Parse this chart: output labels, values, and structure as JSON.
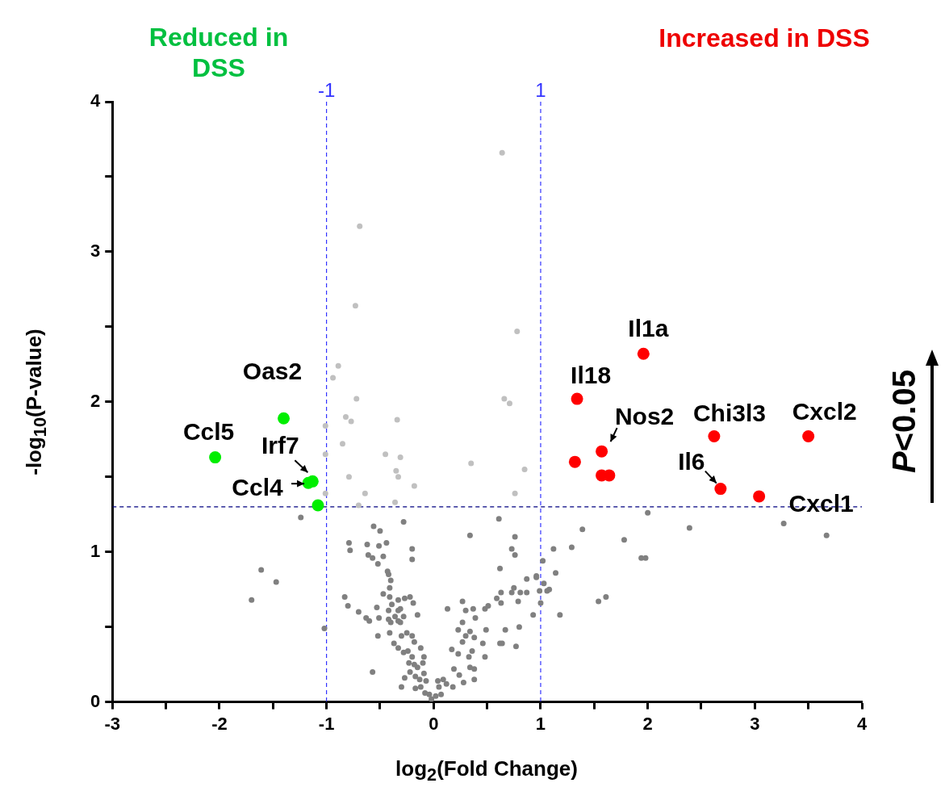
{
  "chart_data": {
    "type": "scatter",
    "xlabel": "log$_{2}$(Fold Change)",
    "ylabel": "-log$_{10}$(P-value)",
    "xlim": [
      -3,
      4
    ],
    "xticks": [
      -3,
      {
        "value": -2.5,
        "label": null
      },
      -2,
      {
        "value": -1.5,
        "label": null
      },
      -1,
      {
        "value": -0.5,
        "label": null
      },
      0,
      {
        "value": 0.5,
        "label": null
      },
      1,
      {
        "value": 1.5,
        "label": null
      },
      2,
      {
        "value": 2.5,
        "label": null
      },
      3,
      {
        "value": 3.5,
        "label": null
      },
      4
    ],
    "ylim": [
      0,
      4
    ],
    "yticks": [
      0,
      {
        "value": 0.5,
        "label": null
      },
      1,
      {
        "value": 1.5,
        "label": null
      },
      2,
      {
        "value": 2.5,
        "label": null
      },
      3,
      {
        "value": 3.5,
        "label": null
      },
      4
    ],
    "grid": false,
    "legend": false,
    "marker": "circle",
    "ref_lines": [
      {
        "axis": "x",
        "value": -1,
        "label": "-1",
        "color": "#3333ff",
        "line_style": "dashed"
      },
      {
        "axis": "x",
        "value": 1,
        "label": "1",
        "color": "#3333ff",
        "line_style": "dashed"
      },
      {
        "axis": "y",
        "value": 1.3,
        "color": "#000080",
        "line_style": "dashed"
      }
    ],
    "annotations": [
      "Reduced in DSS",
      "Increased in DSS",
      "P<0.05",
      {
        "text": "Oas2",
        "x": -1.4,
        "y": 1.89
      },
      {
        "text": "Ccl5",
        "x": -2.04,
        "y": 1.63
      },
      {
        "text": "Irf7",
        "x": -1.13,
        "y": 1.47
      },
      {
        "text": "Ccl4",
        "x": -1.17,
        "y": 1.46
      },
      {
        "text": "Il1a",
        "x": 1.96,
        "y": 2.32
      },
      {
        "text": "Il18",
        "x": 1.34,
        "y": 2.02
      },
      {
        "text": "Nos2",
        "x": 1.57,
        "y": 1.67
      },
      {
        "text": "Chi3l3",
        "x": 2.62,
        "y": 1.77
      },
      {
        "text": "Cxcl2",
        "x": 3.5,
        "y": 1.77
      },
      {
        "text": "Il6",
        "x": 2.68,
        "y": 1.42
      },
      {
        "text": "Cxcl1",
        "x": 3.04,
        "y": 1.37
      }
    ],
    "series": [
      {
        "color": "#808080",
        "x": [
          2.0,
          1.39,
          2.39,
          3.27,
          3.67,
          1.12,
          1.29,
          1.78,
          1.94,
          1.98,
          1.14,
          1.08,
          1.61,
          1.54,
          1.18,
          -1.24,
          -1.61,
          -1.47,
          -1.7,
          -1.02,
          -0.57,
          -0.28,
          -0.56,
          -0.5,
          -0.79,
          -0.78,
          -0.62,
          -0.51,
          -0.44,
          -0.2,
          -0.2,
          -0.61,
          -0.57,
          -0.47,
          -0.52,
          -0.43,
          -0.42,
          -0.4,
          -0.41,
          -0.47,
          -0.41,
          -0.83,
          -0.8,
          -0.7,
          -0.63,
          -0.6,
          -0.53,
          -0.51,
          -0.39,
          -0.42,
          -0.33,
          -0.27,
          -0.22,
          -0.19,
          -0.31,
          -0.33,
          -0.36,
          -0.28,
          -0.15,
          -0.42,
          -0.4,
          -0.33,
          -0.31,
          -0.41,
          -0.52,
          -0.3,
          -0.25,
          -0.2,
          -0.18,
          -0.37,
          -0.33,
          -0.28,
          -0.24,
          -0.12,
          -0.09,
          -0.2,
          -0.23,
          -0.18,
          -0.1,
          -0.15,
          -0.22,
          -0.09,
          -0.27,
          -0.17,
          -0.13,
          -0.07,
          -0.3,
          -0.17,
          -0.12,
          -0.08,
          -0.04,
          -0.02,
          0.02,
          0.07,
          0.05,
          0.04,
          0.09,
          0.12,
          0.18,
          0.19,
          0.24,
          0.28,
          0.38,
          0.34,
          0.38,
          0.17,
          0.23,
          0.33,
          0.36,
          0.48,
          0.46,
          0.27,
          0.3,
          0.38,
          0.23,
          0.27,
          0.34,
          0.49,
          0.39,
          0.3,
          0.37,
          0.13,
          0.27,
          0.48,
          0.51,
          0.59,
          0.63,
          0.63,
          0.62,
          0.61,
          0.34,
          0.76,
          0.73,
          0.76,
          0.75,
          0.73,
          0.81,
          0.79,
          0.87,
          0.87,
          0.96,
          0.96,
          0.99,
          1.03,
          1.06,
          1.0,
          1.02,
          0.93,
          0.67,
          0.8,
          0.62,
          0.64,
          0.77
        ],
        "values": [
          1.26,
          1.15,
          1.16,
          1.19,
          1.11,
          1.02,
          1.03,
          1.08,
          0.96,
          0.96,
          0.86,
          0.75,
          0.7,
          0.67,
          0.58,
          1.23,
          0.88,
          0.8,
          0.68,
          0.49,
          0.2,
          1.2,
          1.17,
          1.14,
          1.06,
          1.01,
          1.05,
          1.04,
          1.06,
          1.02,
          0.95,
          0.98,
          0.96,
          0.97,
          0.92,
          0.87,
          0.85,
          0.81,
          0.76,
          0.72,
          0.7,
          0.7,
          0.64,
          0.6,
          0.56,
          0.54,
          0.63,
          0.56,
          0.65,
          0.61,
          0.68,
          0.69,
          0.7,
          0.66,
          0.62,
          0.61,
          0.57,
          0.57,
          0.58,
          0.55,
          0.53,
          0.54,
          0.53,
          0.46,
          0.44,
          0.44,
          0.46,
          0.44,
          0.4,
          0.39,
          0.36,
          0.33,
          0.34,
          0.36,
          0.3,
          0.3,
          0.26,
          0.25,
          0.26,
          0.23,
          0.2,
          0.19,
          0.16,
          0.17,
          0.15,
          0.14,
          0.1,
          0.09,
          0.1,
          0.06,
          0.05,
          0.02,
          0.04,
          0.05,
          0.1,
          0.14,
          0.15,
          0.12,
          0.1,
          0.22,
          0.18,
          0.13,
          0.15,
          0.23,
          0.22,
          0.35,
          0.32,
          0.3,
          0.34,
          0.3,
          0.39,
          0.4,
          0.44,
          0.43,
          0.48,
          0.53,
          0.47,
          0.48,
          0.56,
          0.61,
          0.62,
          0.62,
          0.67,
          0.62,
          0.64,
          0.69,
          0.66,
          0.73,
          0.89,
          1.22,
          1.11,
          1.1,
          1.02,
          0.98,
          0.76,
          0.73,
          0.73,
          0.67,
          0.82,
          0.73,
          0.83,
          0.84,
          0.74,
          0.79,
          0.74,
          0.66,
          0.94,
          0.58,
          0.48,
          0.5,
          0.39,
          0.39,
          0.37
        ]
      },
      {
        "color": "#c0c0c0",
        "x": [
          0.64,
          -0.69,
          -0.73,
          0.78,
          -0.89,
          -0.94,
          -0.72,
          0.66,
          0.71,
          -0.82,
          -0.77,
          -0.34,
          -1.01,
          -0.85,
          -1.01,
          -0.45,
          -0.31,
          0.35,
          -0.35,
          -0.33,
          0.85,
          -0.79,
          -0.18,
          -1.01,
          -0.64,
          0.76,
          -0.36,
          -0.7
        ],
        "values": [
          3.66,
          3.17,
          2.64,
          2.47,
          2.24,
          2.16,
          2.02,
          2.02,
          1.99,
          1.9,
          1.87,
          1.88,
          1.84,
          1.72,
          1.65,
          1.65,
          1.63,
          1.59,
          1.54,
          1.5,
          1.55,
          1.5,
          1.44,
          1.39,
          1.39,
          1.39,
          1.33,
          1.31
        ]
      },
      {
        "color": "#00ee00",
        "x": [
          -1.4,
          -2.04,
          -1.13,
          -1.17,
          -1.08
        ],
        "values": [
          1.89,
          1.63,
          1.47,
          1.46,
          1.31
        ]
      },
      {
        "color": "#ff0000",
        "x": [
          1.96,
          1.34,
          1.57,
          1.32,
          1.57,
          1.64,
          2.62,
          3.5,
          2.68,
          3.04
        ],
        "values": [
          2.32,
          2.02,
          1.67,
          1.6,
          1.51,
          1.51,
          1.77,
          1.77,
          1.42,
          1.37
        ]
      }
    ]
  }
}
